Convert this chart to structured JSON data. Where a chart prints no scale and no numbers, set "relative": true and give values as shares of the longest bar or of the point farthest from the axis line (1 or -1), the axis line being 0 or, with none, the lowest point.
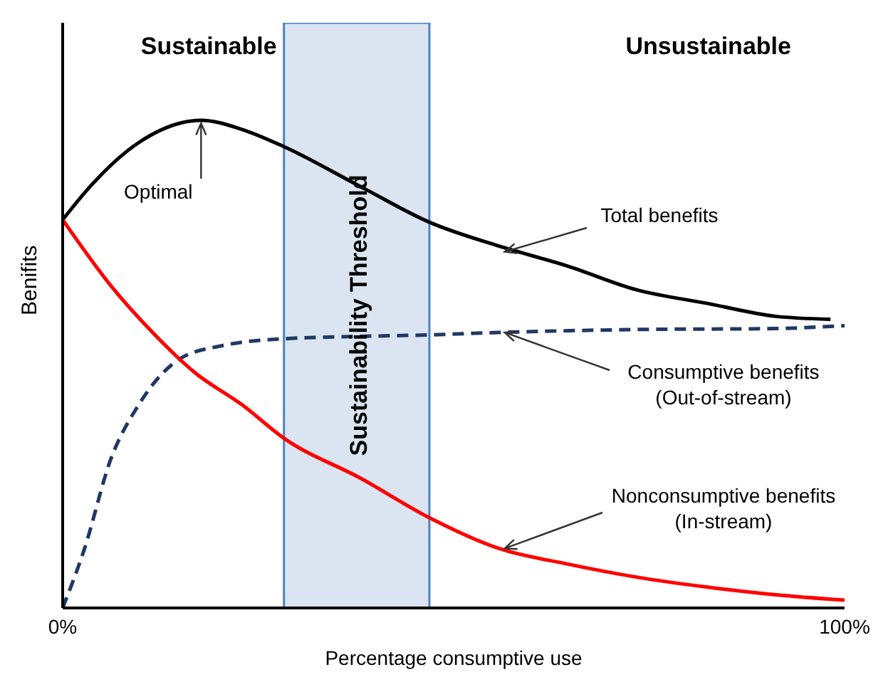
{
  "chart_data": {
    "type": "line",
    "relative": true,
    "xlabel": "Percentage consumptive use",
    "ylabel": "Benifits",
    "xlim": [
      0,
      100
    ],
    "xticks": [
      {
        "value": 0,
        "label": "0%"
      },
      {
        "value": 100,
        "label": "100%"
      }
    ],
    "marker": "none",
    "series": [
      {
        "name": "Total benefits",
        "color": "#000000",
        "line_style": "solid",
        "x": [
          0,
          3.5,
          9.7,
          17.7,
          23,
          28.3,
          38.1,
          46.9,
          55.8,
          64.6,
          73.5,
          82.3,
          91.2,
          98.2
        ],
        "values": [
          0.796,
          0.864,
          0.954,
          1,
          0.981,
          0.946,
          0.864,
          0.791,
          0.742,
          0.701,
          0.652,
          0.625,
          0.598,
          0.592
        ]
      },
      {
        "name": "Consumptive benefits (Out-of-stream)",
        "color": "#1f3864",
        "line_style": "dashed",
        "x": [
          0,
          2.7,
          6.2,
          9.7,
          15,
          20.4,
          28.3,
          38.1,
          46.9,
          55.8,
          73.5,
          91.2,
          100
        ],
        "values": [
          0,
          0.117,
          0.307,
          0.416,
          0.511,
          0.538,
          0.552,
          0.557,
          0.56,
          0.565,
          0.571,
          0.573,
          0.579
        ]
      },
      {
        "name": "Nonconsumptive benefits (In-stream)",
        "color": "#ff0000",
        "line_style": "solid",
        "x": [
          0,
          6.2,
          11.5,
          16.8,
          23,
          28.3,
          38.1,
          46.9,
          55.8,
          64.6,
          73.5,
          82.3,
          91.2,
          100
        ],
        "values": [
          0.796,
          0.66,
          0.565,
          0.484,
          0.416,
          0.348,
          0.266,
          0.185,
          0.122,
          0.09,
          0.063,
          0.043,
          0.027,
          0.016
        ]
      }
    ],
    "bands": [
      {
        "axis": "x",
        "from": 28.3,
        "to": 46.9,
        "label": "Sustainability Threshold",
        "color": "#dbe5f1"
      }
    ],
    "annotations": [
      "Sustainable",
      "Unsustainable",
      {
        "text": "Optimal",
        "x": 17.7,
        "y": 1
      }
    ]
  }
}
